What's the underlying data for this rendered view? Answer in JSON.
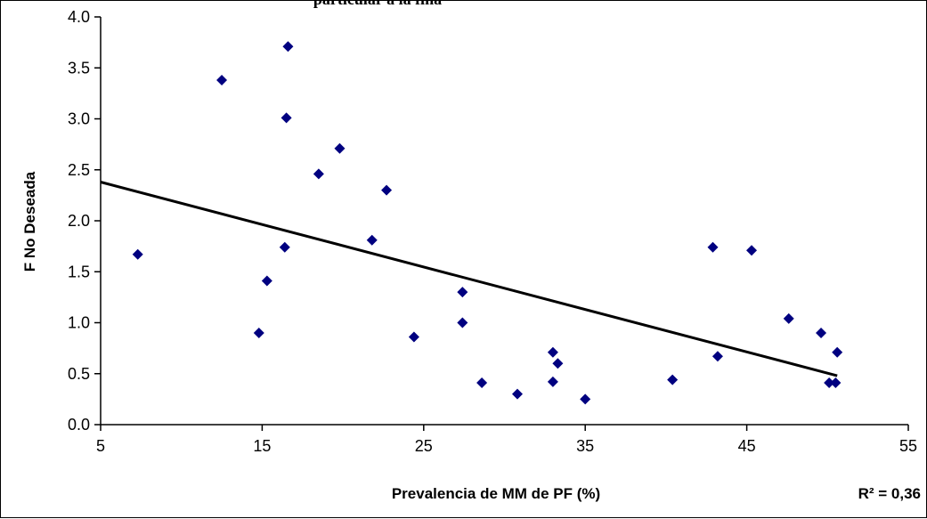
{
  "chart_data": {
    "type": "scatter",
    "title_visible": "particular a la fina",
    "xlabel": "Prevalencia de MM de PF (%)",
    "ylabel": "F No Deseada",
    "xlim": [
      5,
      55
    ],
    "ylim": [
      0,
      4
    ],
    "xticks": [
      5,
      15,
      25,
      35,
      45,
      55
    ],
    "yticks": [
      "0.0",
      "0.5",
      "1.0",
      "1.5",
      "2.0",
      "2.5",
      "3.0",
      "3.5",
      "4.0"
    ],
    "grid": false,
    "marker_color": "#000080",
    "trendline": {
      "x": [
        5,
        50.6
      ],
      "y": [
        2.38,
        0.48
      ],
      "color": "#000000"
    },
    "r2_label": "R² = 0,36",
    "points": [
      {
        "x": 7.3,
        "y": 1.67
      },
      {
        "x": 12.5,
        "y": 3.38
      },
      {
        "x": 14.8,
        "y": 0.9
      },
      {
        "x": 15.3,
        "y": 1.41
      },
      {
        "x": 16.4,
        "y": 1.74
      },
      {
        "x": 16.5,
        "y": 3.01
      },
      {
        "x": 16.6,
        "y": 3.71
      },
      {
        "x": 18.5,
        "y": 2.46
      },
      {
        "x": 19.8,
        "y": 2.71
      },
      {
        "x": 21.8,
        "y": 1.81
      },
      {
        "x": 22.7,
        "y": 2.3
      },
      {
        "x": 24.4,
        "y": 0.86
      },
      {
        "x": 27.4,
        "y": 1.3
      },
      {
        "x": 27.4,
        "y": 1.0
      },
      {
        "x": 28.6,
        "y": 0.41
      },
      {
        "x": 30.8,
        "y": 0.3
      },
      {
        "x": 33.0,
        "y": 0.71
      },
      {
        "x": 33.0,
        "y": 0.42
      },
      {
        "x": 33.3,
        "y": 0.6
      },
      {
        "x": 35.0,
        "y": 0.25
      },
      {
        "x": 40.4,
        "y": 0.44
      },
      {
        "x": 42.9,
        "y": 1.74
      },
      {
        "x": 43.2,
        "y": 0.67
      },
      {
        "x": 45.3,
        "y": 1.71
      },
      {
        "x": 47.6,
        "y": 1.04
      },
      {
        "x": 49.6,
        "y": 0.9
      },
      {
        "x": 50.1,
        "y": 0.41
      },
      {
        "x": 50.5,
        "y": 0.41
      },
      {
        "x": 50.6,
        "y": 0.71
      }
    ]
  }
}
